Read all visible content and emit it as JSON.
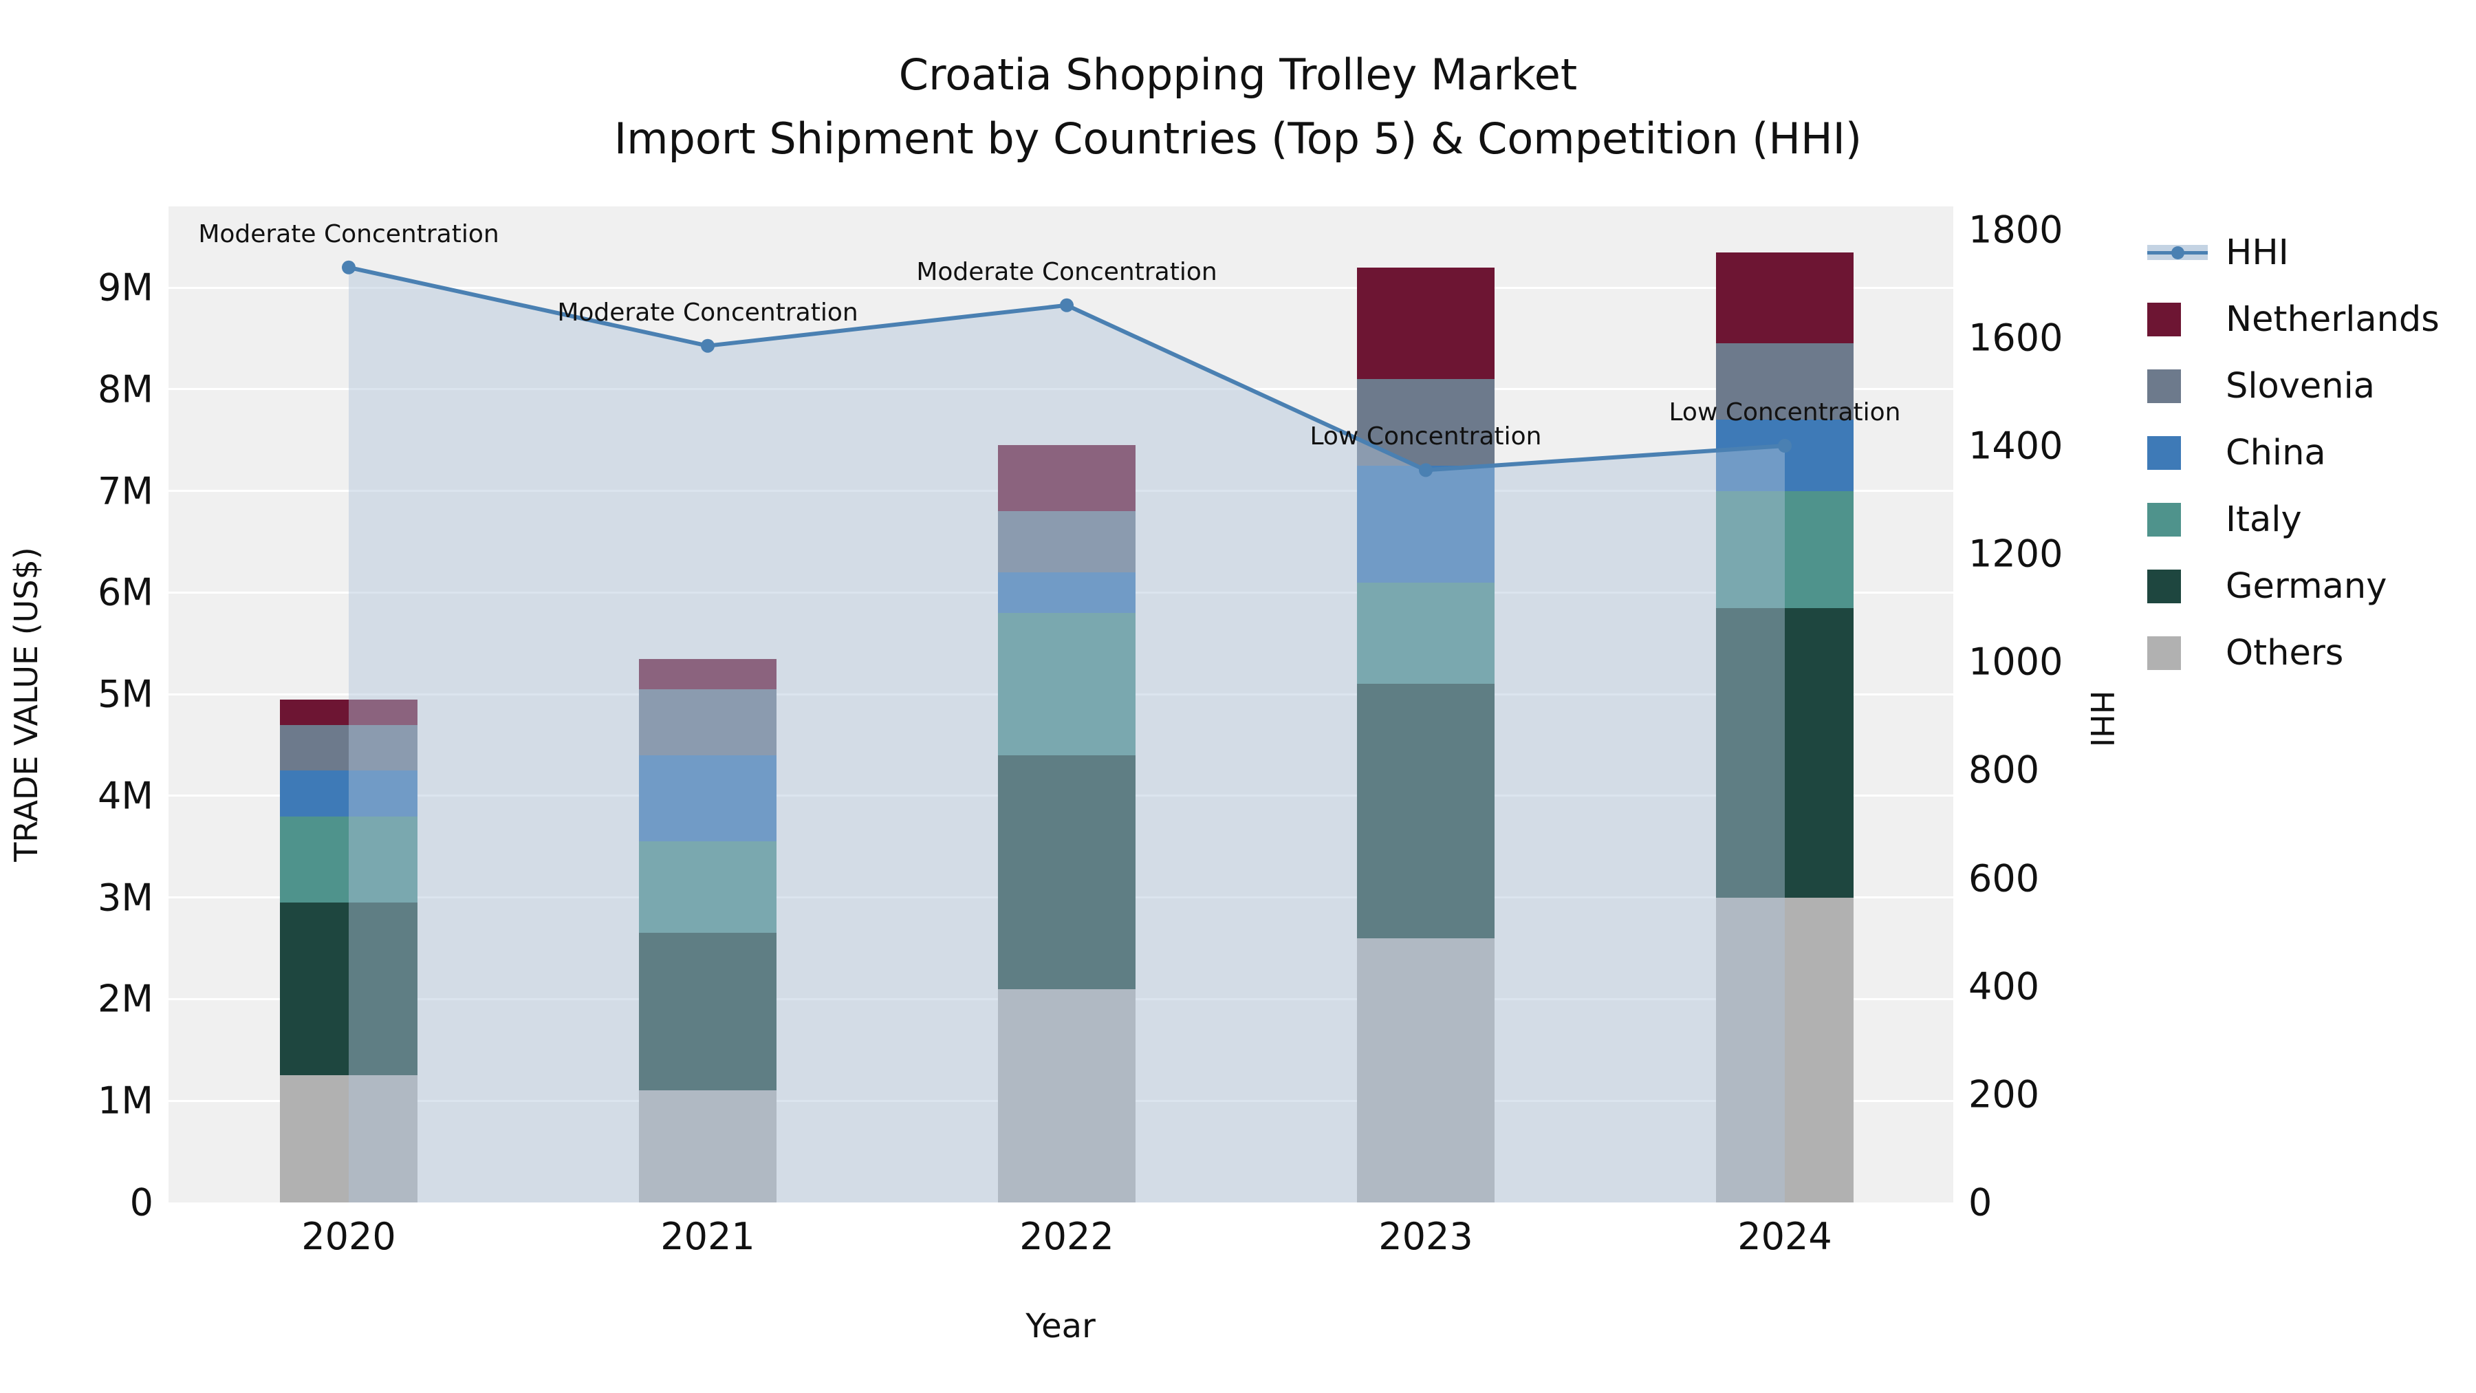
{
  "title": {
    "line1": "Croatia Shopping Trolley Market",
    "line2": "Import Shipment by Countries (Top 5) & Competition (HHI)"
  },
  "axes": {
    "x_label": "Year",
    "y_left_label": "TRADE VALUE (US$)",
    "y_right_label": "HHI",
    "y_left_ticks": [
      "0",
      "1M",
      "2M",
      "3M",
      "4M",
      "5M",
      "6M",
      "7M",
      "8M",
      "9M"
    ],
    "y_right_ticks": [
      "0",
      "200",
      "400",
      "600",
      "800",
      "1000",
      "1200",
      "1400",
      "1600",
      "1800"
    ]
  },
  "chart_data": {
    "type": "bar",
    "subtype": "stacked-bars-with-hhi-line",
    "title": "Croatia Shopping Trolley Market — Import Shipment by Countries (Top 5) & Competition (HHI)",
    "xlabel": "Year",
    "ylabel_left": "TRADE VALUE (US$)",
    "ylabel_right": "HHI",
    "categories": [
      "2020",
      "2021",
      "2022",
      "2023",
      "2024"
    ],
    "value_unit": "million US$",
    "ylim_left": [
      0,
      9.8
    ],
    "ylim_right": [
      0,
      1843
    ],
    "grid": "horizontal-white",
    "plot_background": "#f0f0f0",
    "legend_position": "right-outside",
    "series": [
      {
        "name": "Others",
        "color": "#b1b1b1",
        "values": [
          1.25,
          1.1,
          2.1,
          2.6,
          3.0
        ]
      },
      {
        "name": "Germany",
        "color": "#1e463f",
        "values": [
          1.7,
          1.55,
          2.3,
          2.5,
          2.85
        ]
      },
      {
        "name": "Italy",
        "color": "#4f938c",
        "values": [
          0.85,
          0.9,
          1.4,
          1.0,
          1.15
        ]
      },
      {
        "name": "China",
        "color": "#3e7ab7",
        "values": [
          0.45,
          0.85,
          0.4,
          1.15,
          0.7
        ]
      },
      {
        "name": "Slovenia",
        "color": "#6d7a8c",
        "values": [
          0.45,
          0.65,
          0.6,
          0.85,
          0.75
        ]
      },
      {
        "name": "Netherlands",
        "color": "#6d1533",
        "values": [
          0.25,
          0.3,
          0.65,
          1.1,
          0.9
        ]
      }
    ],
    "totals": [
      4.95,
      5.35,
      7.45,
      9.2,
      9.35
    ],
    "line_series": {
      "name": "HHI",
      "axis": "right",
      "color": "#4a80b2",
      "area_fill": "#b0c4da",
      "area_opacity": 0.45,
      "values": [
        1730,
        1585,
        1660,
        1355,
        1400
      ],
      "annotations": [
        "Moderate Concentration",
        "Moderate Concentration",
        "Moderate Concentration",
        "Low Concentration",
        "Low Concentration"
      ]
    }
  },
  "legend": {
    "items": [
      {
        "label": "HHI",
        "type": "line",
        "color": "#4a80b2"
      },
      {
        "label": "Netherlands",
        "type": "patch",
        "color": "#6d1533"
      },
      {
        "label": "Slovenia",
        "type": "patch",
        "color": "#6d7a8c"
      },
      {
        "label": "China",
        "type": "patch",
        "color": "#3e7ab7"
      },
      {
        "label": "Italy",
        "type": "patch",
        "color": "#4f938c"
      },
      {
        "label": "Germany",
        "type": "patch",
        "color": "#1e463f"
      },
      {
        "label": "Others",
        "type": "patch",
        "color": "#b1b1b1"
      }
    ]
  }
}
